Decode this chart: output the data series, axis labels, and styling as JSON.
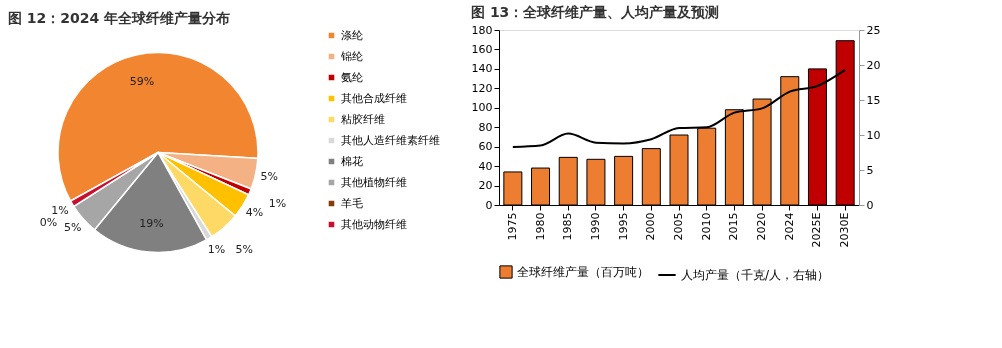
{
  "chart_data": [
    {
      "type": "pie",
      "title": "图 12：2024 年全球纤维产量分布",
      "categories": [
        "涤纶",
        "锦纶",
        "氨纶",
        "其他合成纤维",
        "粘胶纤维",
        "其他人造纤维素纤维",
        "棉花",
        "其他植物纤维",
        "羊毛",
        "其他动物纤维"
      ],
      "values": [
        59,
        5,
        1,
        4,
        5,
        1,
        19,
        5,
        0,
        1
      ],
      "colors": [
        "#f28530",
        "#f4b183",
        "#c00000",
        "#ffc000",
        "#ffd966",
        "#d9d9d9",
        "#808080",
        "#a6a6a6",
        "#843c0c",
        "#c8102e"
      ],
      "value_labels": [
        "59%",
        "5%",
        "1%",
        "4%",
        "5%",
        "1%",
        "19%",
        "5%",
        "0%",
        "1%"
      ],
      "legend": "right"
    },
    {
      "type": "bar",
      "title": "图 13：全球纤维产量、人均产量及预测",
      "categories": [
        "1975",
        "1980",
        "1985",
        "1990",
        "1995",
        "2000",
        "2005",
        "2010",
        "2015",
        "2020",
        "2024",
        "2025E",
        "2030E"
      ],
      "series": [
        {
          "name": "全球纤维产量（百万吨）",
          "type": "bar",
          "color": "#ed7d31",
          "colors": [
            "#ed7d31",
            "#ed7d31",
            "#ed7d31",
            "#ed7d31",
            "#ed7d31",
            "#ed7d31",
            "#ed7d31",
            "#ed7d31",
            "#ed7d31",
            "#ed7d31",
            "#ed7d31",
            "#c00000",
            "#c00000"
          ],
          "values": [
            34,
            38,
            49,
            47,
            50,
            58,
            72,
            79,
            98,
            109,
            132,
            140,
            169
          ]
        },
        {
          "name": "人均产量（千克/人，右轴）",
          "type": "line",
          "axis": "y2",
          "color": "#000000",
          "values": [
            8.3,
            8.5,
            10.2,
            8.9,
            8.8,
            9.4,
            11.0,
            11.1,
            13.2,
            13.8,
            16.2,
            17.0,
            19.3
          ]
        }
      ],
      "ylim": [
        0,
        180
      ],
      "yticks": [
        0,
        20,
        40,
        60,
        80,
        100,
        120,
        140,
        160,
        180
      ],
      "y2lim": [
        0,
        25
      ],
      "y2ticks": [
        0,
        5,
        10,
        15,
        20,
        25
      ],
      "grid": false,
      "legend": "bottom"
    }
  ]
}
